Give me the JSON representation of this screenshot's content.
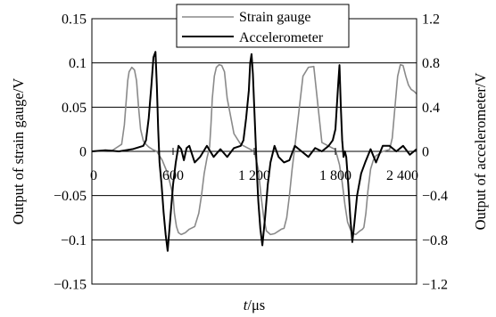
{
  "chart_data": {
    "type": "line",
    "title": "",
    "xlabel_italic": "t",
    "xlabel_unit": "/μs",
    "ylabel_left": "Output of strain gauge/V",
    "ylabel_right": "Output of accelerometer/V",
    "xlim": [
      0,
      2400
    ],
    "ylim_left": [
      -0.15,
      0.15
    ],
    "ylim_right": [
      -1.2,
      1.2
    ],
    "x_ticks": [
      0,
      600,
      1200,
      1800,
      2400
    ],
    "x_tick_labels": [
      "0",
      "600",
      "1 200",
      "1 800",
      "2 400"
    ],
    "y_left_ticks": [
      -0.15,
      -0.1,
      -0.05,
      0,
      0.05,
      0.1,
      0.15
    ],
    "y_left_tick_labels": [
      "−0.15",
      "−0.1",
      "−0.05",
      "0",
      "0.05",
      "0.1",
      "0.15"
    ],
    "y_right_ticks": [
      -1.2,
      -0.8,
      -0.4,
      0,
      0.4,
      0.8,
      1.2
    ],
    "y_right_tick_labels": [
      "−1.2",
      "−0.8",
      "−0.4",
      "0",
      "0.4",
      "0.8",
      "1.2"
    ],
    "grid": "horizontal",
    "legend_position": "top-right",
    "series": [
      {
        "name": "Strain gauge",
        "axis": "left",
        "color": "#8a8a8a",
        "x": [
          0,
          150,
          220,
          240,
          255,
          265,
          275,
          295,
          315,
          330,
          345,
          360,
          380,
          400,
          420,
          450,
          480,
          520,
          560,
          600,
          610,
          625,
          640,
          660,
          690,
          720,
          760,
          790,
          810,
          830,
          850,
          870,
          880,
          890,
          905,
          920,
          940,
          960,
          980,
          1000,
          1050,
          1100,
          1150,
          1200,
          1230,
          1250,
          1270,
          1290,
          1320,
          1350,
          1380,
          1400,
          1420,
          1440,
          1460,
          1480,
          1500,
          1530,
          1560,
          1600,
          1640,
          1700,
          1750,
          1800,
          1830,
          1850,
          1870,
          1890,
          1920,
          1950,
          1980,
          2000,
          2010,
          2025,
          2040,
          2060,
          2080,
          2100,
          2150,
          2200,
          2220,
          2240,
          2260,
          2280,
          2300,
          2320,
          2340,
          2360,
          2380,
          2400
        ],
        "y": [
          0,
          0.001,
          0.008,
          0.03,
          0.06,
          0.08,
          0.09,
          0.095,
          0.092,
          0.08,
          0.05,
          0.025,
          0.012,
          0.008,
          0.005,
          0.002,
          0.0,
          -0.01,
          -0.025,
          -0.05,
          -0.07,
          -0.085,
          -0.092,
          -0.094,
          -0.092,
          -0.088,
          -0.085,
          -0.07,
          -0.05,
          -0.025,
          -0.008,
          0.005,
          0.03,
          0.06,
          0.085,
          0.095,
          0.098,
          0.097,
          0.09,
          0.06,
          0.02,
          0.008,
          0.004,
          0.0,
          -0.02,
          -0.05,
          -0.075,
          -0.09,
          -0.094,
          -0.093,
          -0.09,
          -0.088,
          -0.087,
          -0.075,
          -0.05,
          -0.02,
          0.005,
          0.045,
          0.085,
          0.095,
          0.096,
          0.01,
          0.006,
          0.002,
          -0.015,
          -0.035,
          -0.06,
          -0.08,
          -0.092,
          -0.094,
          -0.09,
          -0.088,
          -0.086,
          -0.07,
          -0.045,
          -0.02,
          -0.01,
          -0.005,
          0.0,
          0.002,
          0.015,
          0.05,
          0.085,
          0.098,
          0.097,
          0.085,
          0.075,
          0.07,
          0.068,
          0.065
        ]
      },
      {
        "name": "Accelerometer",
        "axis": "right",
        "color": "#000000",
        "x": [
          0,
          100,
          200,
          300,
          380,
          400,
          420,
          440,
          455,
          470,
          480,
          490,
          500,
          515,
          530,
          545,
          560,
          580,
          600,
          620,
          640,
          660,
          680,
          700,
          720,
          760,
          800,
          850,
          900,
          950,
          1000,
          1050,
          1100,
          1120,
          1140,
          1160,
          1170,
          1180,
          1190,
          1200,
          1210,
          1220,
          1230,
          1245,
          1260,
          1280,
          1300,
          1320,
          1350,
          1380,
          1420,
          1460,
          1500,
          1550,
          1600,
          1650,
          1700,
          1750,
          1780,
          1800,
          1810,
          1820,
          1830,
          1840,
          1850,
          1860,
          1870,
          1880,
          1895,
          1910,
          1925,
          1940,
          1960,
          1990,
          2020,
          2060,
          2100,
          2150,
          2200,
          2250,
          2300,
          2350,
          2400
        ],
        "y": [
          0,
          0.01,
          0.0,
          0.02,
          0.05,
          0.1,
          0.3,
          0.6,
          0.85,
          0.9,
          0.6,
          0.2,
          -0.1,
          -0.3,
          -0.55,
          -0.75,
          -0.9,
          -0.6,
          -0.3,
          -0.1,
          0.05,
          0.02,
          -0.08,
          0.03,
          0.05,
          -0.1,
          -0.05,
          0.05,
          -0.05,
          0.02,
          -0.05,
          0.03,
          0.05,
          0.1,
          0.3,
          0.55,
          0.8,
          0.88,
          0.7,
          0.4,
          0.1,
          -0.2,
          -0.45,
          -0.7,
          -0.85,
          -0.6,
          -0.3,
          -0.1,
          0.05,
          -0.05,
          -0.1,
          -0.08,
          0.05,
          0.0,
          -0.05,
          0.03,
          0.0,
          0.05,
          0.1,
          0.2,
          0.4,
          0.6,
          0.78,
          0.4,
          0.1,
          -0.05,
          0.0,
          -0.05,
          -0.3,
          -0.6,
          -0.82,
          -0.65,
          -0.4,
          -0.2,
          -0.1,
          0.02,
          -0.1,
          0.05,
          0.05,
          0.0,
          0.05,
          -0.03,
          0.02
        ]
      }
    ]
  }
}
